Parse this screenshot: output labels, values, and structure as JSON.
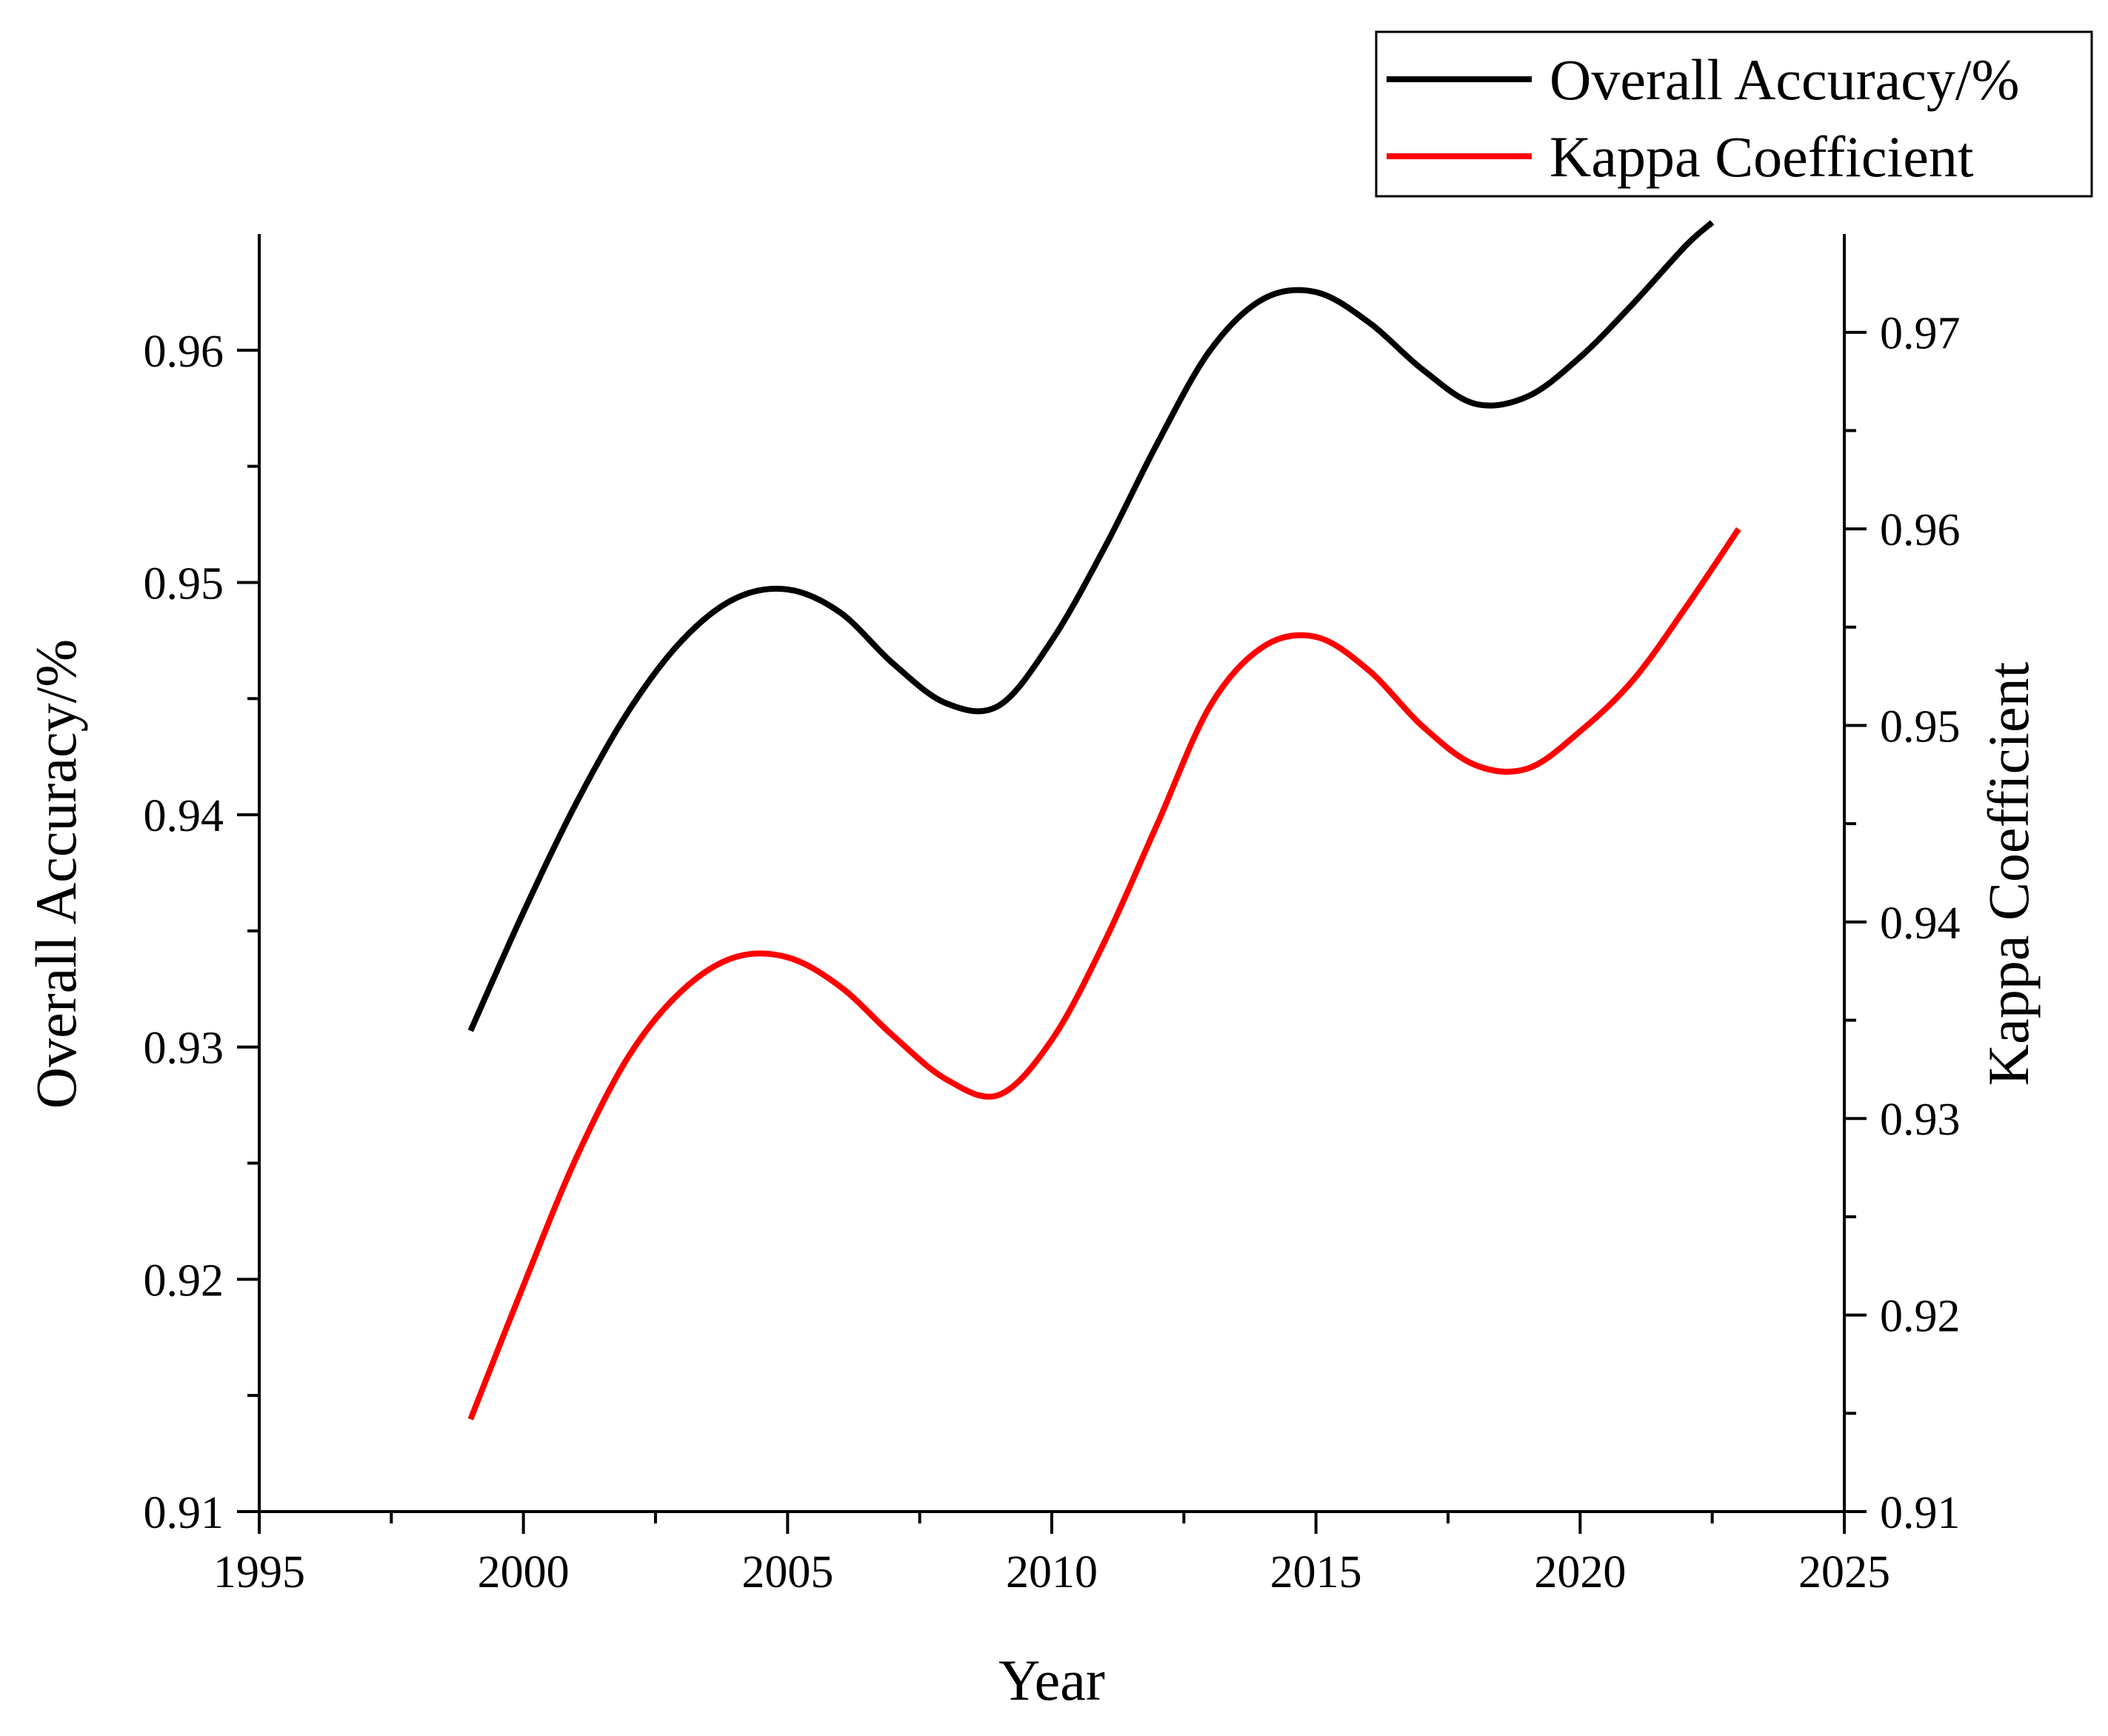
{
  "chart_data": {
    "type": "line",
    "xlabel": "Year",
    "ylabel_left": "Overall Accuracy/%",
    "ylabel_right": "Kappa Coefficient",
    "xlim": [
      1995,
      2025
    ],
    "ylim_left": [
      0.91,
      0.965
    ],
    "ylim_right": [
      0.91,
      0.975
    ],
    "x_ticks": [
      1995,
      2000,
      2005,
      2010,
      2015,
      2020,
      2025
    ],
    "y_ticks_left": [
      "0.91",
      "0.92",
      "0.93",
      "0.94",
      "0.95",
      "0.96"
    ],
    "y_ticks_right": [
      "0.91",
      "0.92",
      "0.93",
      "0.94",
      "0.95",
      "0.96",
      "0.97"
    ],
    "grid": false,
    "legend_position": "top-right",
    "series": [
      {
        "name": "Overall Accuracy/%",
        "axis": "left",
        "color": "#000000",
        "x": [
          1999,
          2000,
          2001,
          2002,
          2003,
          2004,
          2005,
          2006,
          2007,
          2008,
          2009,
          2010,
          2011,
          2012,
          2013,
          2014,
          2015,
          2016,
          2017,
          2018,
          2019,
          2020,
          2021,
          2022,
          2022.5
        ],
        "values": [
          0.9307,
          0.9358,
          0.9405,
          0.9445,
          0.9475,
          0.9493,
          0.9497,
          0.9487,
          0.9465,
          0.9448,
          0.9447,
          0.9475,
          0.9515,
          0.956,
          0.96,
          0.9622,
          0.9625,
          0.9612,
          0.9592,
          0.9577,
          0.958,
          0.9597,
          0.962,
          0.9645,
          0.9655
        ]
      },
      {
        "name": "Kappa Coefficient",
        "axis": "right",
        "color": "#ff0000",
        "x": [
          1999,
          2000,
          2001,
          2002,
          2003,
          2004,
          2005,
          2006,
          2007,
          2008,
          2009,
          2010,
          2011,
          2012,
          2013,
          2014,
          2015,
          2016,
          2017,
          2018,
          2019,
          2020,
          2021,
          2022,
          2023
        ],
        "values": [
          0.9147,
          0.9215,
          0.928,
          0.9332,
          0.9365,
          0.9382,
          0.9382,
          0.9367,
          0.9342,
          0.932,
          0.9312,
          0.934,
          0.939,
          0.945,
          0.951,
          0.954,
          0.9545,
          0.9528,
          0.95,
          0.948,
          0.9478,
          0.9497,
          0.9523,
          0.956,
          0.96
        ]
      }
    ]
  }
}
